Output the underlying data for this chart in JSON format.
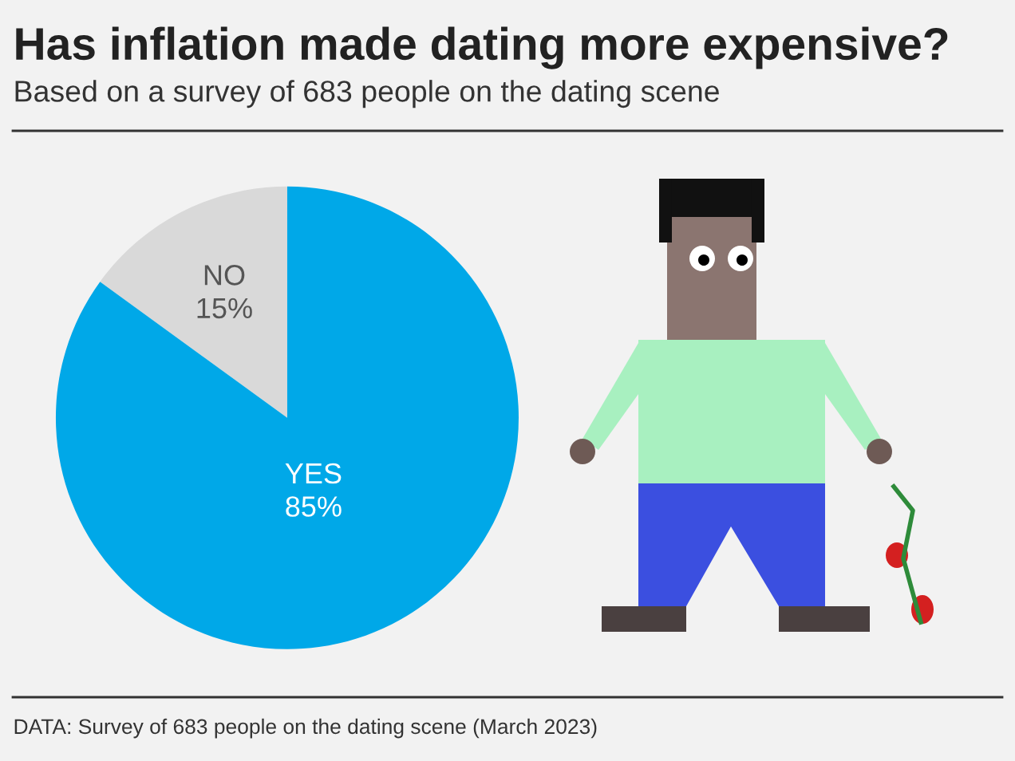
{
  "chart_data": {
    "type": "pie",
    "title": "Has inflation made dating more expensive?",
    "subtitle": "Based on a survey of 683 people on the dating scene",
    "categories": [
      "NO",
      "YES"
    ],
    "values": [
      15,
      85
    ],
    "value_labels": [
      "15%",
      "85%"
    ],
    "colors": [
      "#d9d9d9",
      "#00a8e8"
    ],
    "legend": false,
    "annotations": [
      "DATA: Survey of 683 people on the dating scene (March 2023)"
    ]
  }
}
